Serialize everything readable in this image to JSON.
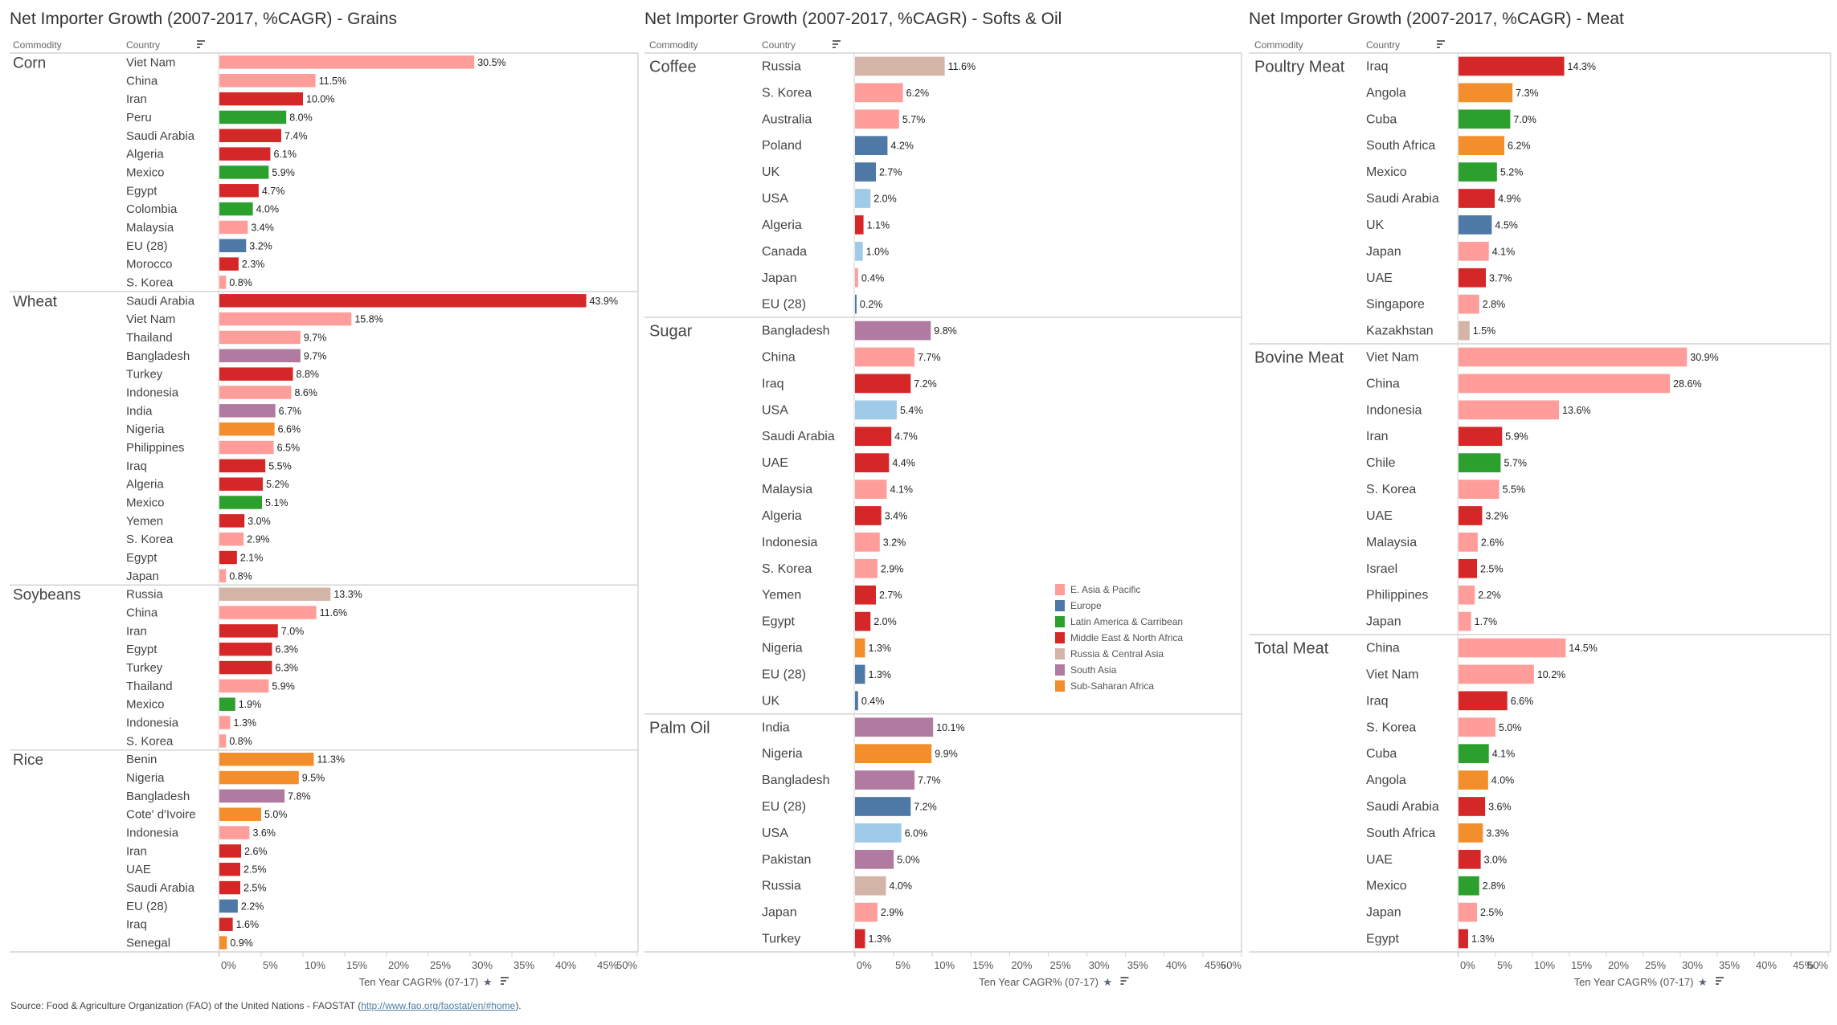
{
  "colors": {
    "E. Asia & Pacific": "#ff9d9a",
    "Europe": "#4e79a7",
    "Latin America & Carribean": "#2ca02c",
    "Middle East & North Africa": "#d62728",
    "Russia & Central Asia": "#d4b4a7",
    "South Asia": "#b07aa1",
    "Sub-Saharan Africa": "#f28e2b",
    "North America": "#a0cbe8"
  },
  "headers": {
    "commodity": "Commodity",
    "country": "Country"
  },
  "legend": [
    {
      "label": "E. Asia & Pacific",
      "color": "#ff9d9a"
    },
    {
      "label": "Europe",
      "color": "#4e79a7"
    },
    {
      "label": "Latin America & Carribean",
      "color": "#2ca02c"
    },
    {
      "label": "Middle East & North Africa",
      "color": "#d62728"
    },
    {
      "label": "Russia & Central Asia",
      "color": "#d4b4a7"
    },
    {
      "label": "South Asia",
      "color": "#b07aa1"
    },
    {
      "label": "Sub-Saharan Africa",
      "color": "#f28e2b"
    }
  ],
  "footer": {
    "prefix": "Source: Food & Agriculture Organization (FAO) of the United Nations - FAOSTAT (",
    "link": "http://www.fao.org/faostat/en/#home",
    "suffix": ")."
  },
  "chart_data": [
    {
      "type": "bar",
      "orientation": "horizontal",
      "title": "Net Importer Growth (2007-2017, %CAGR) - Grains",
      "xlabel": "Ten Year CAGR% (07-17)",
      "xlim": [
        0,
        50
      ],
      "xticks": [
        "0%",
        "5%",
        "10%",
        "15%",
        "20%",
        "25%",
        "30%",
        "35%",
        "40%",
        "45%",
        "50%"
      ],
      "groups": [
        {
          "commodity": "Corn",
          "rows": [
            {
              "country": "Viet Nam",
              "value": 30.5,
              "region": "E. Asia & Pacific"
            },
            {
              "country": "China",
              "value": 11.5,
              "region": "E. Asia & Pacific"
            },
            {
              "country": "Iran",
              "value": 10.0,
              "region": "Middle East & North Africa"
            },
            {
              "country": "Peru",
              "value": 8.0,
              "region": "Latin America & Carribean"
            },
            {
              "country": "Saudi Arabia",
              "value": 7.4,
              "region": "Middle East & North Africa"
            },
            {
              "country": "Algeria",
              "value": 6.1,
              "region": "Middle East & North Africa"
            },
            {
              "country": "Mexico",
              "value": 5.9,
              "region": "Latin America & Carribean"
            },
            {
              "country": "Egypt",
              "value": 4.7,
              "region": "Middle East & North Africa"
            },
            {
              "country": "Colombia",
              "value": 4.0,
              "region": "Latin America & Carribean"
            },
            {
              "country": "Malaysia",
              "value": 3.4,
              "region": "E. Asia & Pacific"
            },
            {
              "country": "EU (28)",
              "value": 3.2,
              "region": "Europe"
            },
            {
              "country": "Morocco",
              "value": 2.3,
              "region": "Middle East & North Africa"
            },
            {
              "country": "S. Korea",
              "value": 0.8,
              "region": "E. Asia & Pacific"
            }
          ]
        },
        {
          "commodity": "Wheat",
          "rows": [
            {
              "country": "Saudi Arabia",
              "value": 43.9,
              "region": "Middle East & North Africa"
            },
            {
              "country": "Viet Nam",
              "value": 15.8,
              "region": "E. Asia & Pacific"
            },
            {
              "country": "Thailand",
              "value": 9.7,
              "region": "E. Asia & Pacific"
            },
            {
              "country": "Bangladesh",
              "value": 9.7,
              "region": "South Asia"
            },
            {
              "country": "Turkey",
              "value": 8.8,
              "region": "Middle East & North Africa"
            },
            {
              "country": "Indonesia",
              "value": 8.6,
              "region": "E. Asia & Pacific"
            },
            {
              "country": "India",
              "value": 6.7,
              "region": "South Asia"
            },
            {
              "country": "Nigeria",
              "value": 6.6,
              "region": "Sub-Saharan Africa"
            },
            {
              "country": "Philippines",
              "value": 6.5,
              "region": "E. Asia & Pacific"
            },
            {
              "country": "Iraq",
              "value": 5.5,
              "region": "Middle East & North Africa"
            },
            {
              "country": "Algeria",
              "value": 5.2,
              "region": "Middle East & North Africa"
            },
            {
              "country": "Mexico",
              "value": 5.1,
              "region": "Latin America & Carribean"
            },
            {
              "country": "Yemen",
              "value": 3.0,
              "region": "Middle East & North Africa"
            },
            {
              "country": "S. Korea",
              "value": 2.9,
              "region": "E. Asia & Pacific"
            },
            {
              "country": "Egypt",
              "value": 2.1,
              "region": "Middle East & North Africa"
            },
            {
              "country": "Japan",
              "value": 0.8,
              "region": "E. Asia & Pacific"
            }
          ]
        },
        {
          "commodity": "Soybeans",
          "rows": [
            {
              "country": "Russia",
              "value": 13.3,
              "region": "Russia & Central Asia"
            },
            {
              "country": "China",
              "value": 11.6,
              "region": "E. Asia & Pacific"
            },
            {
              "country": "Iran",
              "value": 7.0,
              "region": "Middle East & North Africa"
            },
            {
              "country": "Egypt",
              "value": 6.3,
              "region": "Middle East & North Africa"
            },
            {
              "country": "Turkey",
              "value": 6.3,
              "region": "Middle East & North Africa"
            },
            {
              "country": "Thailand",
              "value": 5.9,
              "region": "E. Asia & Pacific"
            },
            {
              "country": "Mexico",
              "value": 1.9,
              "region": "Latin America & Carribean"
            },
            {
              "country": "Indonesia",
              "value": 1.3,
              "region": "E. Asia & Pacific"
            },
            {
              "country": "S. Korea",
              "value": 0.8,
              "region": "E. Asia & Pacific"
            }
          ]
        },
        {
          "commodity": "Rice",
          "rows": [
            {
              "country": "Benin",
              "value": 11.3,
              "region": "Sub-Saharan Africa"
            },
            {
              "country": "Nigeria",
              "value": 9.5,
              "region": "Sub-Saharan Africa"
            },
            {
              "country": "Bangladesh",
              "value": 7.8,
              "region": "South Asia"
            },
            {
              "country": "Cote' d'Ivoire",
              "value": 5.0,
              "region": "Sub-Saharan Africa"
            },
            {
              "country": "Indonesia",
              "value": 3.6,
              "region": "E. Asia & Pacific"
            },
            {
              "country": "Iran",
              "value": 2.6,
              "region": "Middle East & North Africa"
            },
            {
              "country": "UAE",
              "value": 2.5,
              "region": "Middle East & North Africa"
            },
            {
              "country": "Saudi Arabia",
              "value": 2.5,
              "region": "Middle East & North Africa"
            },
            {
              "country": "EU (28)",
              "value": 2.2,
              "region": "Europe"
            },
            {
              "country": "Iraq",
              "value": 1.6,
              "region": "Middle East & North Africa"
            },
            {
              "country": "Senegal",
              "value": 0.9,
              "region": "Sub-Saharan Africa"
            }
          ]
        }
      ]
    },
    {
      "type": "bar",
      "orientation": "horizontal",
      "title": "Net Importer Growth (2007-2017, %CAGR) - Softs & Oil",
      "xlabel": "Ten Year CAGR% (07-17)",
      "xlim": [
        0,
        50
      ],
      "xticks": [
        "0%",
        "5%",
        "10%",
        "15%",
        "20%",
        "25%",
        "30%",
        "35%",
        "40%",
        "45%",
        "50%"
      ],
      "groups": [
        {
          "commodity": "Coffee",
          "rows": [
            {
              "country": "Russia",
              "value": 11.6,
              "region": "Russia & Central Asia"
            },
            {
              "country": "S. Korea",
              "value": 6.2,
              "region": "E. Asia & Pacific"
            },
            {
              "country": "Australia",
              "value": 5.7,
              "region": "E. Asia & Pacific"
            },
            {
              "country": "Poland",
              "value": 4.2,
              "region": "Europe"
            },
            {
              "country": "UK",
              "value": 2.7,
              "region": "Europe"
            },
            {
              "country": "USA",
              "value": 2.0,
              "region": "North America"
            },
            {
              "country": "Algeria",
              "value": 1.1,
              "region": "Middle East & North Africa"
            },
            {
              "country": "Canada",
              "value": 1.0,
              "region": "North America"
            },
            {
              "country": "Japan",
              "value": 0.4,
              "region": "E. Asia & Pacific"
            },
            {
              "country": "EU (28)",
              "value": 0.2,
              "region": "Europe"
            }
          ]
        },
        {
          "commodity": "Sugar",
          "rows": [
            {
              "country": "Bangladesh",
              "value": 9.8,
              "region": "South Asia"
            },
            {
              "country": "China",
              "value": 7.7,
              "region": "E. Asia & Pacific"
            },
            {
              "country": "Iraq",
              "value": 7.2,
              "region": "Middle East & North Africa"
            },
            {
              "country": "USA",
              "value": 5.4,
              "region": "North America"
            },
            {
              "country": "Saudi Arabia",
              "value": 4.7,
              "region": "Middle East & North Africa"
            },
            {
              "country": "UAE",
              "value": 4.4,
              "region": "Middle East & North Africa"
            },
            {
              "country": "Malaysia",
              "value": 4.1,
              "region": "E. Asia & Pacific"
            },
            {
              "country": "Algeria",
              "value": 3.4,
              "region": "Middle East & North Africa"
            },
            {
              "country": "Indonesia",
              "value": 3.2,
              "region": "E. Asia & Pacific"
            },
            {
              "country": "S. Korea",
              "value": 2.9,
              "region": "E. Asia & Pacific"
            },
            {
              "country": "Yemen",
              "value": 2.7,
              "region": "Middle East & North Africa"
            },
            {
              "country": "Egypt",
              "value": 2.0,
              "region": "Middle East & North Africa"
            },
            {
              "country": "Nigeria",
              "value": 1.3,
              "region": "Sub-Saharan Africa"
            },
            {
              "country": "EU (28)",
              "value": 1.3,
              "region": "Europe"
            },
            {
              "country": "UK",
              "value": 0.4,
              "region": "Europe"
            }
          ]
        },
        {
          "commodity": "Palm Oil",
          "rows": [
            {
              "country": "India",
              "value": 10.1,
              "region": "South Asia"
            },
            {
              "country": "Nigeria",
              "value": 9.9,
              "region": "Sub-Saharan Africa"
            },
            {
              "country": "Bangladesh",
              "value": 7.7,
              "region": "South Asia"
            },
            {
              "country": "EU (28)",
              "value": 7.2,
              "region": "Europe"
            },
            {
              "country": "USA",
              "value": 6.0,
              "region": "North America"
            },
            {
              "country": "Pakistan",
              "value": 5.0,
              "region": "South Asia"
            },
            {
              "country": "Russia",
              "value": 4.0,
              "region": "Russia & Central Asia"
            },
            {
              "country": "Japan",
              "value": 2.9,
              "region": "E. Asia & Pacific"
            },
            {
              "country": "Turkey",
              "value": 1.3,
              "region": "Middle East & North Africa"
            }
          ]
        }
      ]
    },
    {
      "type": "bar",
      "orientation": "horizontal",
      "title": "Net Importer Growth (2007-2017, %CAGR) - Meat",
      "xlabel": "Ten Year CAGR% (07-17)",
      "xlim": [
        0,
        50
      ],
      "xticks": [
        "0%",
        "5%",
        "10%",
        "15%",
        "20%",
        "25%",
        "30%",
        "35%",
        "40%",
        "45%",
        "50%"
      ],
      "groups": [
        {
          "commodity": "Poultry Meat",
          "rows": [
            {
              "country": "Iraq",
              "value": 14.3,
              "region": "Middle East & North Africa"
            },
            {
              "country": "Angola",
              "value": 7.3,
              "region": "Sub-Saharan Africa"
            },
            {
              "country": "Cuba",
              "value": 7.0,
              "region": "Latin America & Carribean"
            },
            {
              "country": "South Africa",
              "value": 6.2,
              "region": "Sub-Saharan Africa"
            },
            {
              "country": "Mexico",
              "value": 5.2,
              "region": "Latin America & Carribean"
            },
            {
              "country": "Saudi Arabia",
              "value": 4.9,
              "region": "Middle East & North Africa"
            },
            {
              "country": "UK",
              "value": 4.5,
              "region": "Europe"
            },
            {
              "country": "Japan",
              "value": 4.1,
              "region": "E. Asia & Pacific"
            },
            {
              "country": "UAE",
              "value": 3.7,
              "region": "Middle East & North Africa"
            },
            {
              "country": "Singapore",
              "value": 2.8,
              "region": "E. Asia & Pacific"
            },
            {
              "country": "Kazakhstan",
              "value": 1.5,
              "region": "Russia & Central Asia"
            }
          ]
        },
        {
          "commodity": "Bovine Meat",
          "rows": [
            {
              "country": "Viet Nam",
              "value": 30.9,
              "region": "E. Asia & Pacific"
            },
            {
              "country": "China",
              "value": 28.6,
              "region": "E. Asia & Pacific"
            },
            {
              "country": "Indonesia",
              "value": 13.6,
              "region": "E. Asia & Pacific"
            },
            {
              "country": "Iran",
              "value": 5.9,
              "region": "Middle East & North Africa"
            },
            {
              "country": "Chile",
              "value": 5.7,
              "region": "Latin America & Carribean"
            },
            {
              "country": "S. Korea",
              "value": 5.5,
              "region": "E. Asia & Pacific"
            },
            {
              "country": "UAE",
              "value": 3.2,
              "region": "Middle East & North Africa"
            },
            {
              "country": "Malaysia",
              "value": 2.6,
              "region": "E. Asia & Pacific"
            },
            {
              "country": "Israel",
              "value": 2.5,
              "region": "Middle East & North Africa"
            },
            {
              "country": "Philippines",
              "value": 2.2,
              "region": "E. Asia & Pacific"
            },
            {
              "country": "Japan",
              "value": 1.7,
              "region": "E. Asia & Pacific"
            }
          ]
        },
        {
          "commodity": "Total Meat",
          "rows": [
            {
              "country": "China",
              "value": 14.5,
              "region": "E. Asia & Pacific"
            },
            {
              "country": "Viet Nam",
              "value": 10.2,
              "region": "E. Asia & Pacific"
            },
            {
              "country": "Iraq",
              "value": 6.6,
              "region": "Middle East & North Africa"
            },
            {
              "country": "S. Korea",
              "value": 5.0,
              "region": "E. Asia & Pacific"
            },
            {
              "country": "Cuba",
              "value": 4.1,
              "region": "Latin America & Carribean"
            },
            {
              "country": "Angola",
              "value": 4.0,
              "region": "Sub-Saharan Africa"
            },
            {
              "country": "Saudi Arabia",
              "value": 3.6,
              "region": "Middle East & North Africa"
            },
            {
              "country": "South Africa",
              "value": 3.3,
              "region": "Sub-Saharan Africa"
            },
            {
              "country": "UAE",
              "value": 3.0,
              "region": "Middle East & North Africa"
            },
            {
              "country": "Mexico",
              "value": 2.8,
              "region": "Latin America & Carribean"
            },
            {
              "country": "Japan",
              "value": 2.5,
              "region": "E. Asia & Pacific"
            },
            {
              "country": "Egypt",
              "value": 1.3,
              "region": "Middle East & North Africa"
            }
          ]
        }
      ]
    }
  ]
}
